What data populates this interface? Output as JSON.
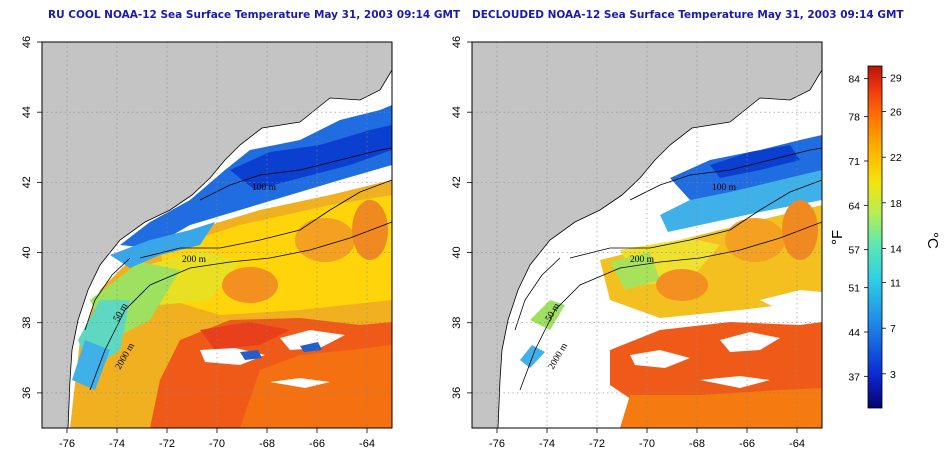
{
  "panels": [
    {
      "title": "RU COOL NOAA-12 Sea Surface Temperature May 31, 2003 09:14 GMT",
      "clouds_masked": false
    },
    {
      "title": "DECLOUDED NOAA-12 Sea Surface Temperature May 31, 2003 09:14 GMT",
      "clouds_masked": true
    }
  ],
  "axes": {
    "x_ticks": [
      "-76",
      "-74",
      "-72",
      "-70",
      "-68",
      "-66",
      "-64"
    ],
    "y_ticks": [
      "36",
      "38",
      "40",
      "42",
      "44",
      "46"
    ],
    "lon_range": [
      -77,
      -63
    ],
    "lat_range": [
      35,
      46
    ],
    "grid": "dotted"
  },
  "contours": {
    "labels": [
      "100 m",
      "200 m",
      "2000 m",
      "50 m"
    ]
  },
  "colorbar": {
    "unit_f": "°F",
    "unit_c": "°C",
    "fahrenheit_ticks": [
      "84",
      "78",
      "71",
      "64",
      "57",
      "51",
      "44",
      "37"
    ],
    "celsius_ticks": [
      "29",
      "26",
      "22",
      "18",
      "14",
      "11",
      "7",
      "3"
    ],
    "range_c": [
      0,
      30
    ],
    "colors": [
      "#08006e",
      "#0a2bd4",
      "#1f8ae6",
      "#2fd1e3",
      "#5fe8b0",
      "#b6ee54",
      "#f4e40c",
      "#ffb500",
      "#ff7b00",
      "#f03a10",
      "#b81406"
    ]
  },
  "colors": {
    "land": "#c4c4c4",
    "title": "#1a1ab0"
  }
}
